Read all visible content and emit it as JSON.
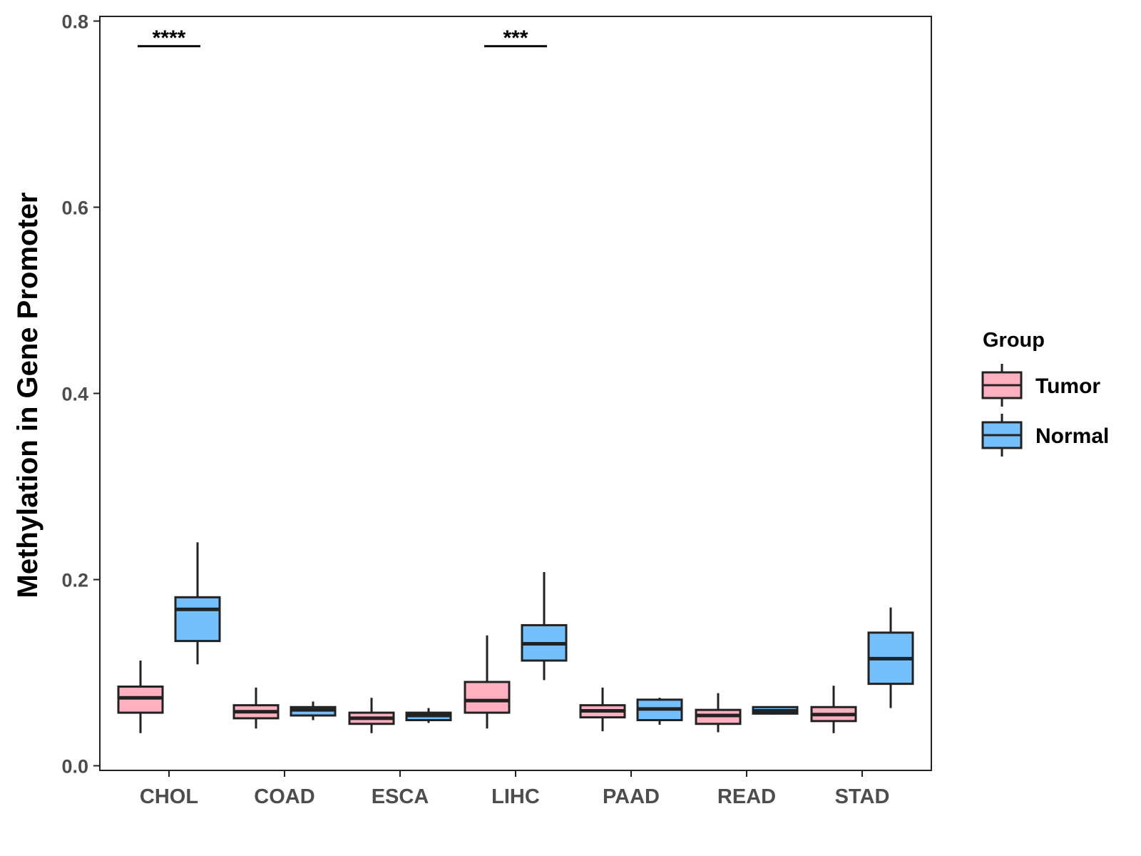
{
  "chart_data": {
    "type": "box",
    "title": "",
    "xlabel": "",
    "ylabel": "Methylation in Gene Promoter",
    "ylim": [
      -0.005,
      0.805
    ],
    "yticks": [
      0.0,
      0.2,
      0.4,
      0.6,
      0.8
    ],
    "ytick_labels": [
      "0.0",
      "0.2",
      "0.4",
      "0.6",
      "0.8"
    ],
    "grid": false,
    "categories": [
      "CHOL",
      "COAD",
      "ESCA",
      "LIHC",
      "PAAD",
      "READ",
      "STAD"
    ],
    "legend": {
      "title": "Group",
      "position": "right",
      "entries": [
        {
          "name": "Tumor",
          "color": "#ffb0c0"
        },
        {
          "name": "Normal",
          "color": "#74c0fc"
        }
      ]
    },
    "series": [
      {
        "name": "Tumor",
        "color": "#ffb0c0",
        "boxes": [
          {
            "min": 0.035,
            "q1": 0.057,
            "median": 0.073,
            "q3": 0.085,
            "max": 0.113
          },
          {
            "min": 0.04,
            "q1": 0.051,
            "median": 0.058,
            "q3": 0.065,
            "max": 0.084
          },
          {
            "min": 0.035,
            "q1": 0.045,
            "median": 0.051,
            "q3": 0.057,
            "max": 0.073
          },
          {
            "min": 0.04,
            "q1": 0.057,
            "median": 0.07,
            "q3": 0.09,
            "max": 0.14
          },
          {
            "min": 0.037,
            "q1": 0.052,
            "median": 0.059,
            "q3": 0.065,
            "max": 0.084
          },
          {
            "min": 0.036,
            "q1": 0.045,
            "median": 0.054,
            "q3": 0.06,
            "max": 0.078
          },
          {
            "min": 0.035,
            "q1": 0.048,
            "median": 0.055,
            "q3": 0.063,
            "max": 0.086
          }
        ]
      },
      {
        "name": "Normal",
        "color": "#74c0fc",
        "boxes": [
          {
            "min": 0.109,
            "q1": 0.134,
            "median": 0.168,
            "q3": 0.181,
            "max": 0.24
          },
          {
            "min": 0.049,
            "q1": 0.054,
            "median": 0.06,
            "q3": 0.063,
            "max": 0.069
          },
          {
            "min": 0.046,
            "q1": 0.049,
            "median": 0.054,
            "q3": 0.057,
            "max": 0.062
          },
          {
            "min": 0.092,
            "q1": 0.113,
            "median": 0.131,
            "q3": 0.151,
            "max": 0.208
          },
          {
            "min": 0.044,
            "q1": 0.049,
            "median": 0.061,
            "q3": 0.071,
            "max": 0.073
          },
          {
            "min": 0.055,
            "q1": 0.056,
            "median": 0.059,
            "q3": 0.063,
            "max": 0.063
          },
          {
            "min": 0.062,
            "q1": 0.088,
            "median": 0.115,
            "q3": 0.143,
            "max": 0.17
          }
        ]
      }
    ],
    "significance": [
      {
        "category": "CHOL",
        "label": "****",
        "y": 0.773
      },
      {
        "category": "LIHC",
        "label": "***",
        "y": 0.773
      }
    ]
  }
}
